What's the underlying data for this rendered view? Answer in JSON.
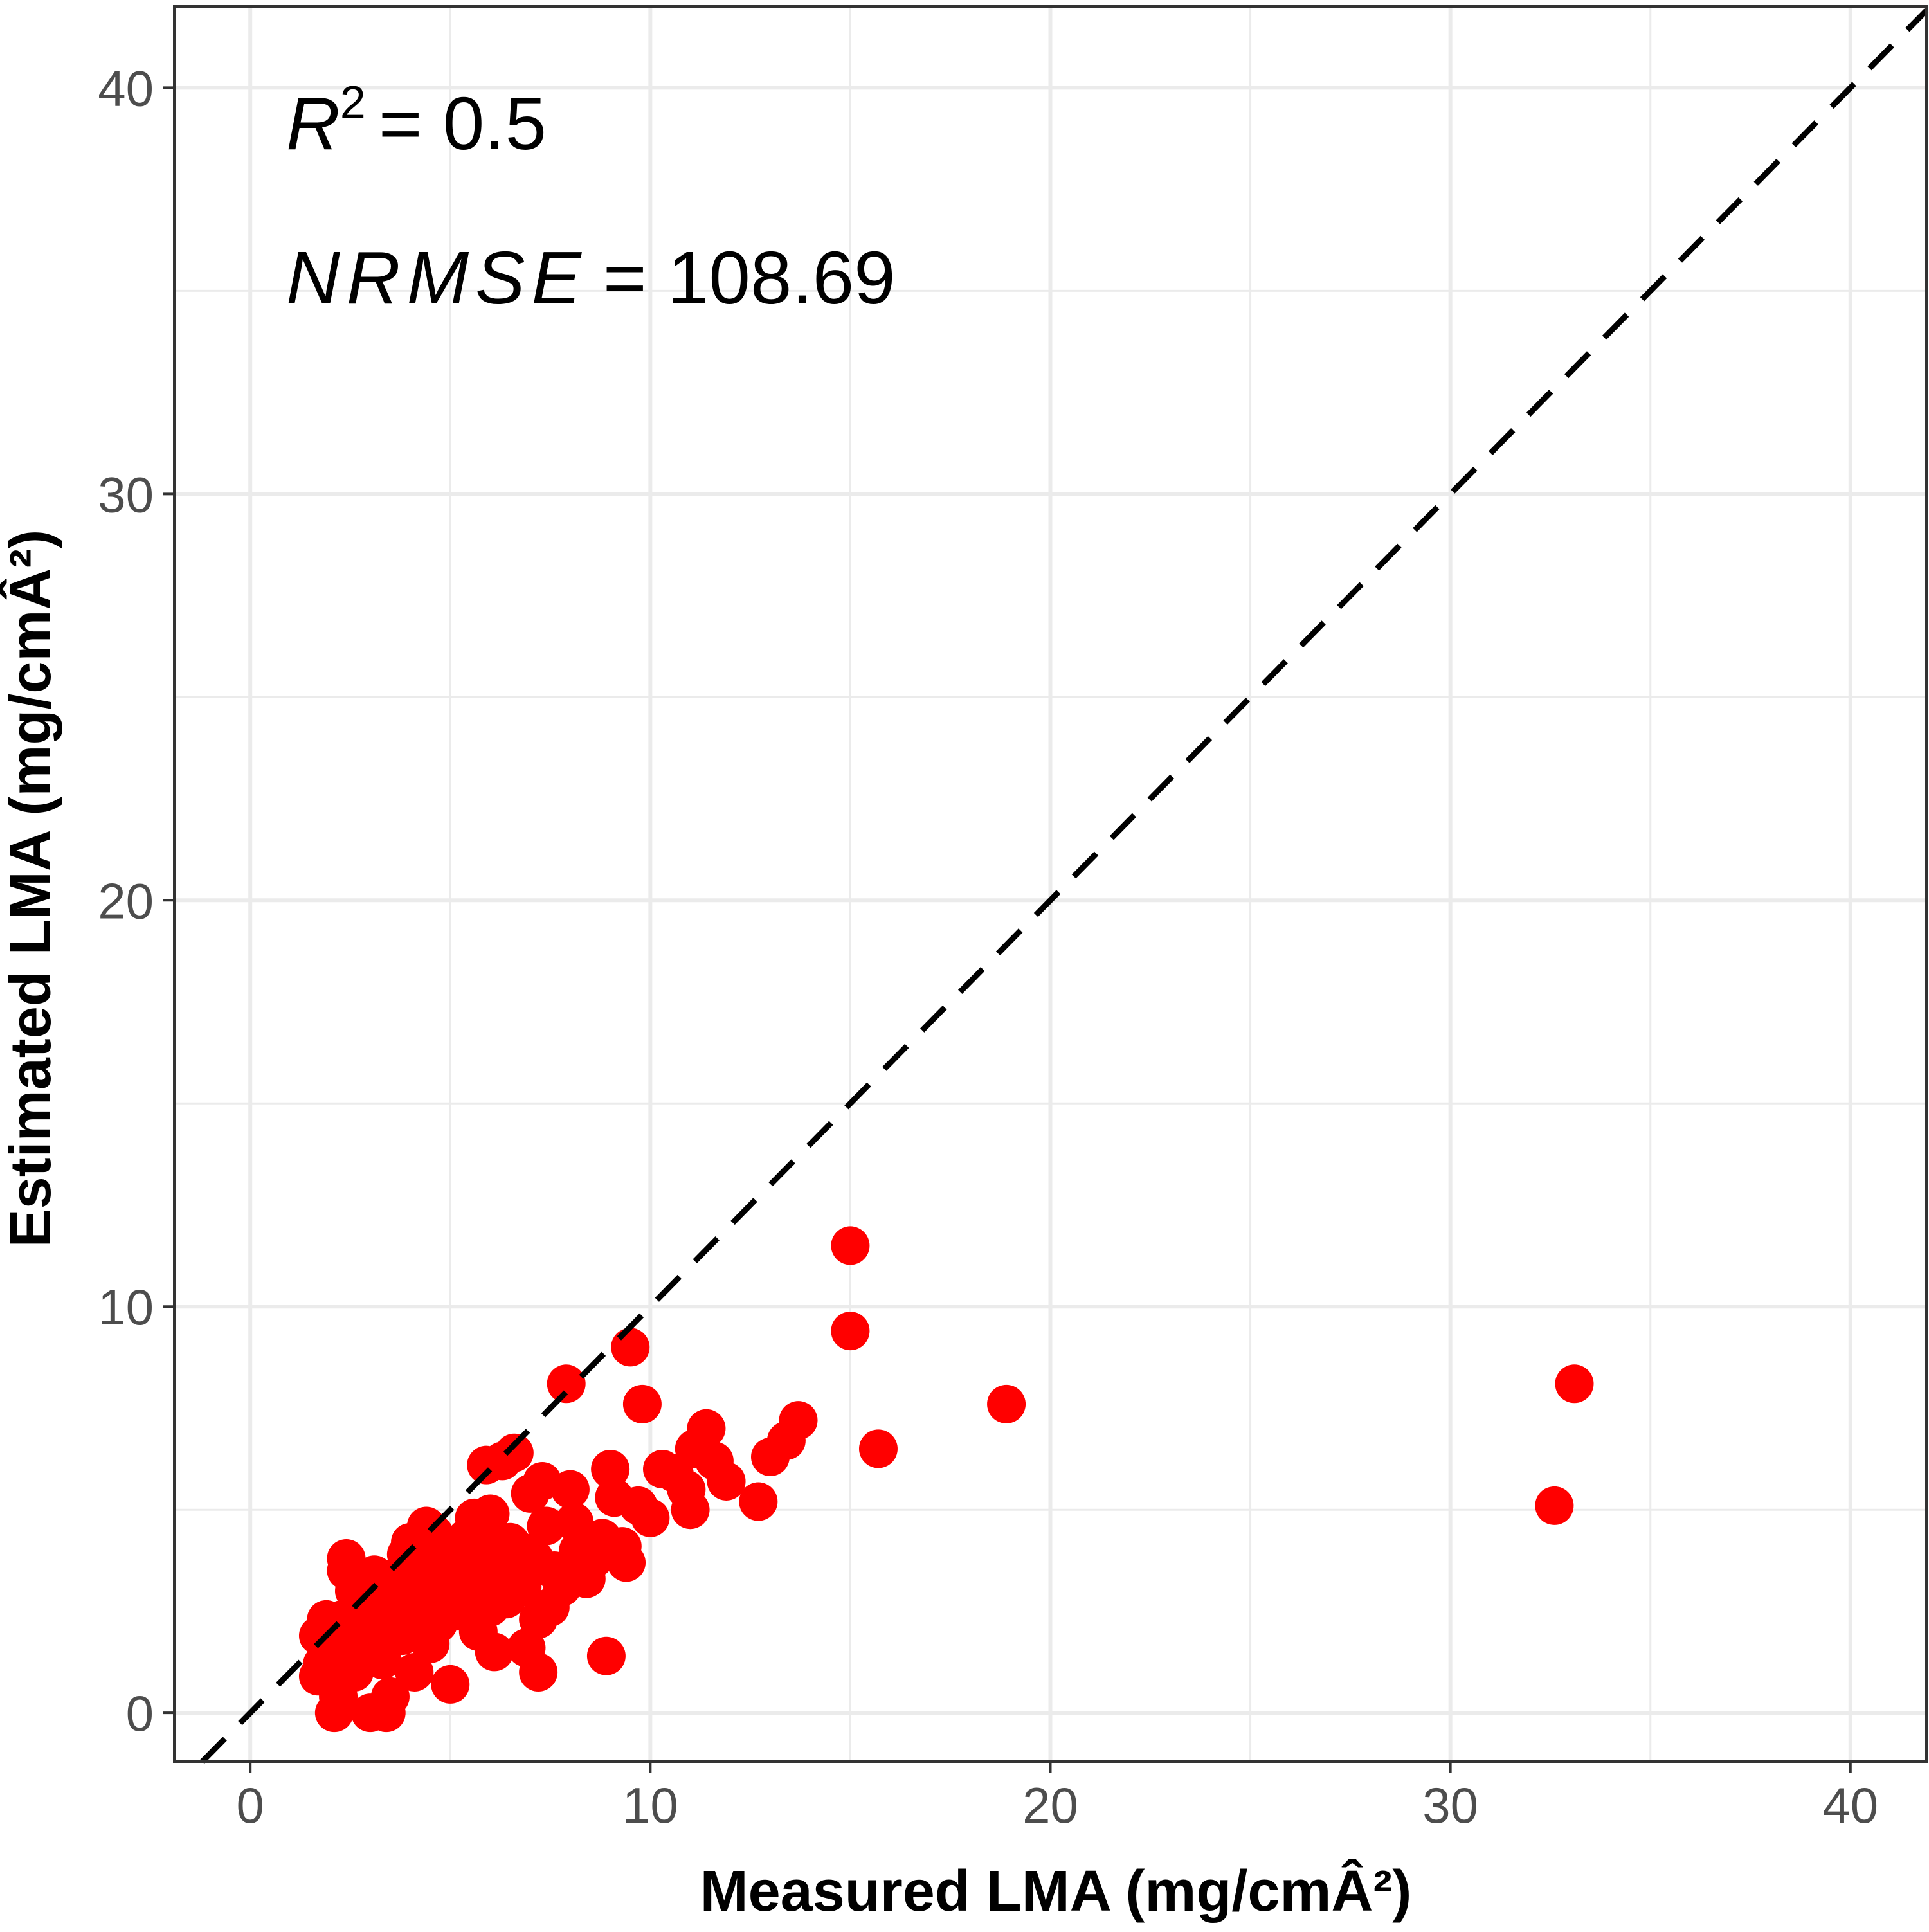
{
  "chart_data": {
    "type": "scatter",
    "xlabel": "Measured LMA (mg/cmÂ²)",
    "ylabel": "Estimated LMA (mg/cmÂ²)",
    "xlim": [
      -1.9,
      41.9
    ],
    "ylim": [
      -1.2,
      42.0
    ],
    "x_ticks": [
      0,
      10,
      20,
      30,
      40
    ],
    "y_ticks": [
      0,
      10,
      20,
      30,
      40
    ],
    "grid": true,
    "reference_line": {
      "type": "identity",
      "style": "dashed",
      "color": "#000000"
    },
    "point_color": "#ff0000",
    "annotations": {
      "r2_symbol": "R",
      "r2_exponent": "2",
      "r2_value": "= 0.5",
      "nrmse_label": "NRMSE",
      "nrmse_value": "= 108.69"
    },
    "points": [
      [
        15.0,
        11.5
      ],
      [
        15.0,
        9.4
      ],
      [
        9.5,
        9.0
      ],
      [
        7.9,
        8.1
      ],
      [
        9.8,
        7.6
      ],
      [
        18.9,
        7.6
      ],
      [
        33.1,
        8.1
      ],
      [
        32.6,
        5.1
      ],
      [
        15.7,
        6.5
      ],
      [
        13.7,
        7.2
      ],
      [
        13.4,
        6.7
      ],
      [
        13.0,
        6.3
      ],
      [
        12.7,
        5.2
      ],
      [
        11.9,
        5.7
      ],
      [
        11.6,
        6.2
      ],
      [
        11.4,
        7.0
      ],
      [
        11.1,
        6.5
      ],
      [
        10.9,
        5.5
      ],
      [
        10.6,
        5.9
      ],
      [
        10.3,
        6.0
      ],
      [
        11.0,
        5.0
      ],
      [
        10.0,
        4.8
      ],
      [
        9.7,
        5.1
      ],
      [
        9.4,
        3.7
      ],
      [
        9.3,
        4.1
      ],
      [
        9.1,
        5.3
      ],
      [
        9.0,
        6.0
      ],
      [
        8.8,
        4.3
      ],
      [
        8.6,
        3.8
      ],
      [
        8.9,
        1.4
      ],
      [
        8.4,
        3.3
      ],
      [
        8.2,
        4.0
      ],
      [
        8.0,
        5.5
      ],
      [
        7.8,
        3.1
      ],
      [
        7.6,
        3.5
      ],
      [
        7.4,
        4.6
      ],
      [
        7.3,
        5.7
      ],
      [
        7.2,
        2.3
      ],
      [
        7.1,
        3.8
      ],
      [
        7.0,
        5.4
      ],
      [
        7.2,
        1.0
      ],
      [
        6.8,
        3.1
      ],
      [
        6.6,
        6.4
      ],
      [
        6.5,
        4.2
      ],
      [
        6.4,
        2.8
      ],
      [
        6.3,
        6.2
      ],
      [
        6.2,
        3.6
      ],
      [
        6.1,
        1.5
      ],
      [
        6.0,
        4.9
      ],
      [
        6.0,
        2.6
      ],
      [
        5.9,
        6.1
      ],
      [
        5.9,
        4.5
      ],
      [
        5.8,
        3.4
      ],
      [
        5.7,
        2.0
      ],
      [
        5.6,
        3.9
      ],
      [
        5.5,
        2.9
      ],
      [
        5.4,
        4.3
      ],
      [
        5.3,
        3.6
      ],
      [
        5.2,
        2.5
      ],
      [
        5.1,
        3.2
      ],
      [
        5.0,
        4.1
      ],
      [
        5.0,
        0.7
      ],
      [
        4.9,
        2.8
      ],
      [
        4.8,
        3.5
      ],
      [
        4.7,
        2.2
      ],
      [
        4.6,
        4.4
      ],
      [
        4.6,
        3.0
      ],
      [
        4.5,
        1.7
      ],
      [
        4.4,
        4.6
      ],
      [
        4.3,
        3.3
      ],
      [
        4.3,
        2.4
      ],
      [
        4.2,
        3.9
      ],
      [
        4.1,
        1.0
      ],
      [
        4.0,
        2.8
      ],
      [
        4.0,
        4.2
      ],
      [
        3.9,
        3.6
      ],
      [
        3.8,
        1.9
      ],
      [
        3.7,
        3.0
      ],
      [
        3.6,
        2.3
      ],
      [
        3.5,
        0.4
      ],
      [
        3.5,
        3.3
      ],
      [
        3.4,
        0.0
      ],
      [
        3.3,
        2.0
      ],
      [
        3.3,
        1.3
      ],
      [
        3.2,
        2.7
      ],
      [
        3.1,
        3.4
      ],
      [
        3.0,
        0.0
      ],
      [
        3.0,
        2.1
      ],
      [
        2.9,
        1.5
      ],
      [
        2.8,
        3.2
      ],
      [
        2.7,
        2.4
      ],
      [
        2.6,
        1.0
      ],
      [
        2.5,
        1.9
      ],
      [
        2.4,
        3.5
      ],
      [
        2.4,
        3.8
      ],
      [
        2.3,
        2.3
      ],
      [
        2.2,
        0.4
      ],
      [
        2.1,
        0.0
      ],
      [
        2.1,
        1.4
      ],
      [
        2.0,
        1.8
      ],
      [
        1.9,
        2.3
      ],
      [
        1.8,
        1.2
      ],
      [
        1.7,
        0.9
      ],
      [
        1.7,
        1.9
      ],
      [
        2.6,
        3.0
      ],
      [
        4.9,
        3.8
      ],
      [
        6.7,
        4.0
      ],
      [
        8.1,
        4.7
      ],
      [
        5.6,
        4.8
      ],
      [
        3.9,
        3.9
      ],
      [
        7.5,
        2.6
      ],
      [
        6.9,
        1.6
      ],
      [
        4.4,
        2.0
      ],
      [
        2.9,
        2.9
      ]
    ]
  }
}
